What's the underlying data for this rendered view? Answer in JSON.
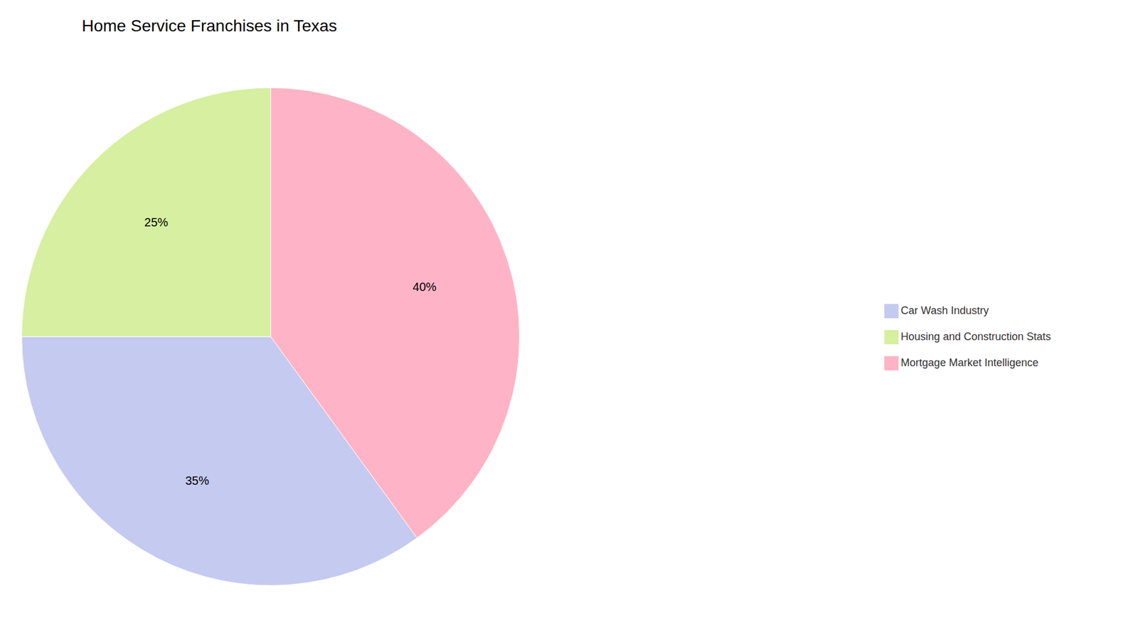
{
  "chart_data": {
    "type": "pie",
    "title": "Home Service Franchises in Texas",
    "categories": [
      "Mortgage Market Intelligence",
      "Car Wash Industry",
      "Housing and Construction Stats"
    ],
    "values": [
      40,
      35,
      25
    ],
    "value_labels": [
      "40%",
      "35%",
      "25%"
    ],
    "colors": [
      "#FFB3C6",
      "#C5CAF0",
      "#D6EFA0"
    ],
    "data_labels": true,
    "legend": "right"
  }
}
